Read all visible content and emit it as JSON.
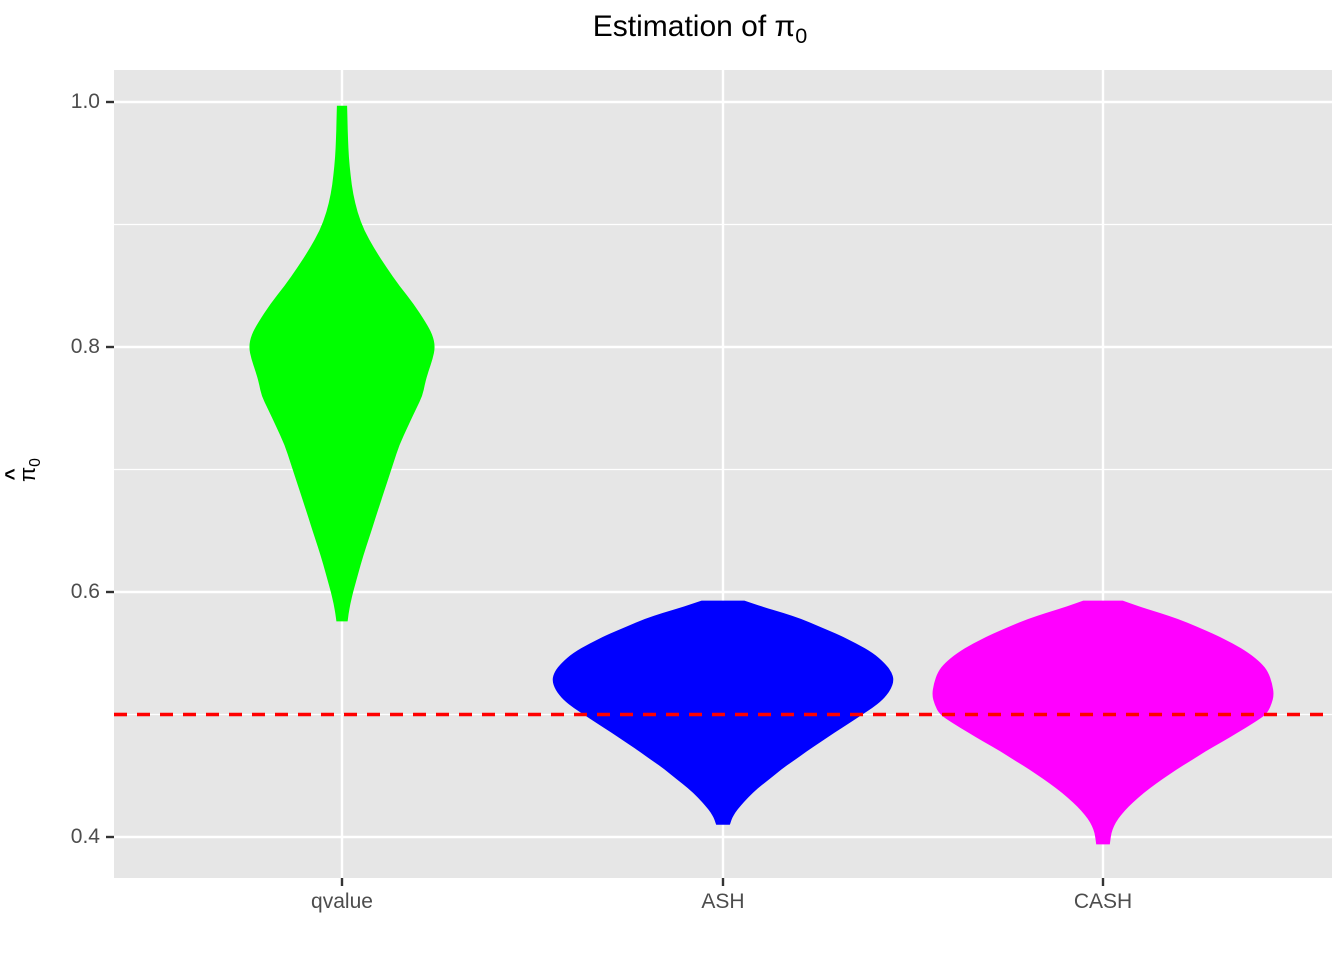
{
  "title": {
    "main": "Estimation of ",
    "symbol": "π",
    "sub": "0"
  },
  "y_axis": {
    "label_symbol": "π",
    "label_hat": "^",
    "label_sub": "0",
    "ticks": [
      "1.0",
      "0.8",
      "0.6",
      "0.4"
    ],
    "tick_values": [
      1.0,
      0.8,
      0.6,
      0.4
    ],
    "minor_values": [
      0.9,
      0.7,
      0.5
    ]
  },
  "x_axis": {
    "categories": [
      "qvalue",
      "ASH",
      "CASH"
    ]
  },
  "colors": {
    "panel_background": "#e6e6e6",
    "gridline": "#ffffff",
    "tick_mark": "#333333",
    "tick_label": "#4d4d4d",
    "reference_line": "#ff0000",
    "qvalue": "#00ff00",
    "ASH": "#0000ff",
    "CASH": "#ff00ff"
  },
  "chart_data": {
    "type": "violin",
    "title": "Estimation of π_0",
    "ylabel": "π̂_0 (pi-hat-zero)",
    "xlabel": "",
    "categories": [
      "qvalue",
      "ASH",
      "CASH"
    ],
    "ylim": [
      0.365,
      1.026
    ],
    "y_ticks": [
      0.4,
      0.6,
      0.8,
      1.0
    ],
    "y_minor_ticks": [
      0.5,
      0.7,
      0.9
    ],
    "grid": true,
    "legend": false,
    "reference_line_y": 0.5,
    "series": [
      {
        "name": "qvalue",
        "color": "#00ff00",
        "range": [
          0.576,
          0.997
        ],
        "peak_value": 0.805,
        "profile": [
          [
            0.997,
            0.03
          ],
          [
            0.985,
            0.032
          ],
          [
            0.97,
            0.035
          ],
          [
            0.955,
            0.04
          ],
          [
            0.94,
            0.05
          ],
          [
            0.925,
            0.065
          ],
          [
            0.91,
            0.09
          ],
          [
            0.895,
            0.13
          ],
          [
            0.88,
            0.19
          ],
          [
            0.865,
            0.26
          ],
          [
            0.85,
            0.335
          ],
          [
            0.835,
            0.42
          ],
          [
            0.82,
            0.49
          ],
          [
            0.81,
            0.53
          ],
          [
            0.8,
            0.545
          ],
          [
            0.79,
            0.53
          ],
          [
            0.78,
            0.505
          ],
          [
            0.77,
            0.485
          ],
          [
            0.76,
            0.47
          ],
          [
            0.75,
            0.435
          ],
          [
            0.735,
            0.385
          ],
          [
            0.72,
            0.335
          ],
          [
            0.705,
            0.3
          ],
          [
            0.69,
            0.265
          ],
          [
            0.675,
            0.23
          ],
          [
            0.66,
            0.195
          ],
          [
            0.645,
            0.16
          ],
          [
            0.63,
            0.125
          ],
          [
            0.615,
            0.095
          ],
          [
            0.6,
            0.065
          ],
          [
            0.59,
            0.048
          ],
          [
            0.582,
            0.038
          ],
          [
            0.576,
            0.033
          ]
        ]
      },
      {
        "name": "ASH",
        "color": "#0000ff",
        "range": [
          0.41,
          0.593
        ],
        "peak_value": 0.531,
        "profile": [
          [
            0.593,
            0.125
          ],
          [
            0.588,
            0.23
          ],
          [
            0.583,
            0.35
          ],
          [
            0.578,
            0.46
          ],
          [
            0.572,
            0.56
          ],
          [
            0.565,
            0.68
          ],
          [
            0.558,
            0.78
          ],
          [
            0.55,
            0.88
          ],
          [
            0.542,
            0.945
          ],
          [
            0.535,
            0.985
          ],
          [
            0.528,
            1.0
          ],
          [
            0.52,
            0.98
          ],
          [
            0.512,
            0.935
          ],
          [
            0.505,
            0.87
          ],
          [
            0.5,
            0.815
          ],
          [
            0.493,
            0.74
          ],
          [
            0.485,
            0.65
          ],
          [
            0.478,
            0.575
          ],
          [
            0.47,
            0.49
          ],
          [
            0.462,
            0.41
          ],
          [
            0.455,
            0.34
          ],
          [
            0.447,
            0.27
          ],
          [
            0.44,
            0.205
          ],
          [
            0.432,
            0.145
          ],
          [
            0.425,
            0.1
          ],
          [
            0.42,
            0.072
          ],
          [
            0.416,
            0.055
          ],
          [
            0.412,
            0.045
          ],
          [
            0.41,
            0.04
          ]
        ]
      },
      {
        "name": "CASH",
        "color": "#ff00ff",
        "range": [
          0.394,
          0.593
        ],
        "peak_value": 0.516,
        "profile": [
          [
            0.593,
            0.115
          ],
          [
            0.588,
            0.215
          ],
          [
            0.583,
            0.33
          ],
          [
            0.578,
            0.44
          ],
          [
            0.572,
            0.545
          ],
          [
            0.565,
            0.66
          ],
          [
            0.558,
            0.76
          ],
          [
            0.55,
            0.855
          ],
          [
            0.542,
            0.925
          ],
          [
            0.535,
            0.965
          ],
          [
            0.525,
            0.99
          ],
          [
            0.516,
            1.0
          ],
          [
            0.508,
            0.985
          ],
          [
            0.5,
            0.955
          ],
          [
            0.493,
            0.88
          ],
          [
            0.485,
            0.785
          ],
          [
            0.478,
            0.7
          ],
          [
            0.47,
            0.6
          ],
          [
            0.462,
            0.51
          ],
          [
            0.455,
            0.43
          ],
          [
            0.447,
            0.345
          ],
          [
            0.44,
            0.275
          ],
          [
            0.432,
            0.205
          ],
          [
            0.425,
            0.15
          ],
          [
            0.418,
            0.105
          ],
          [
            0.412,
            0.075
          ],
          [
            0.406,
            0.055
          ],
          [
            0.4,
            0.045
          ],
          [
            0.394,
            0.04
          ]
        ]
      }
    ]
  }
}
